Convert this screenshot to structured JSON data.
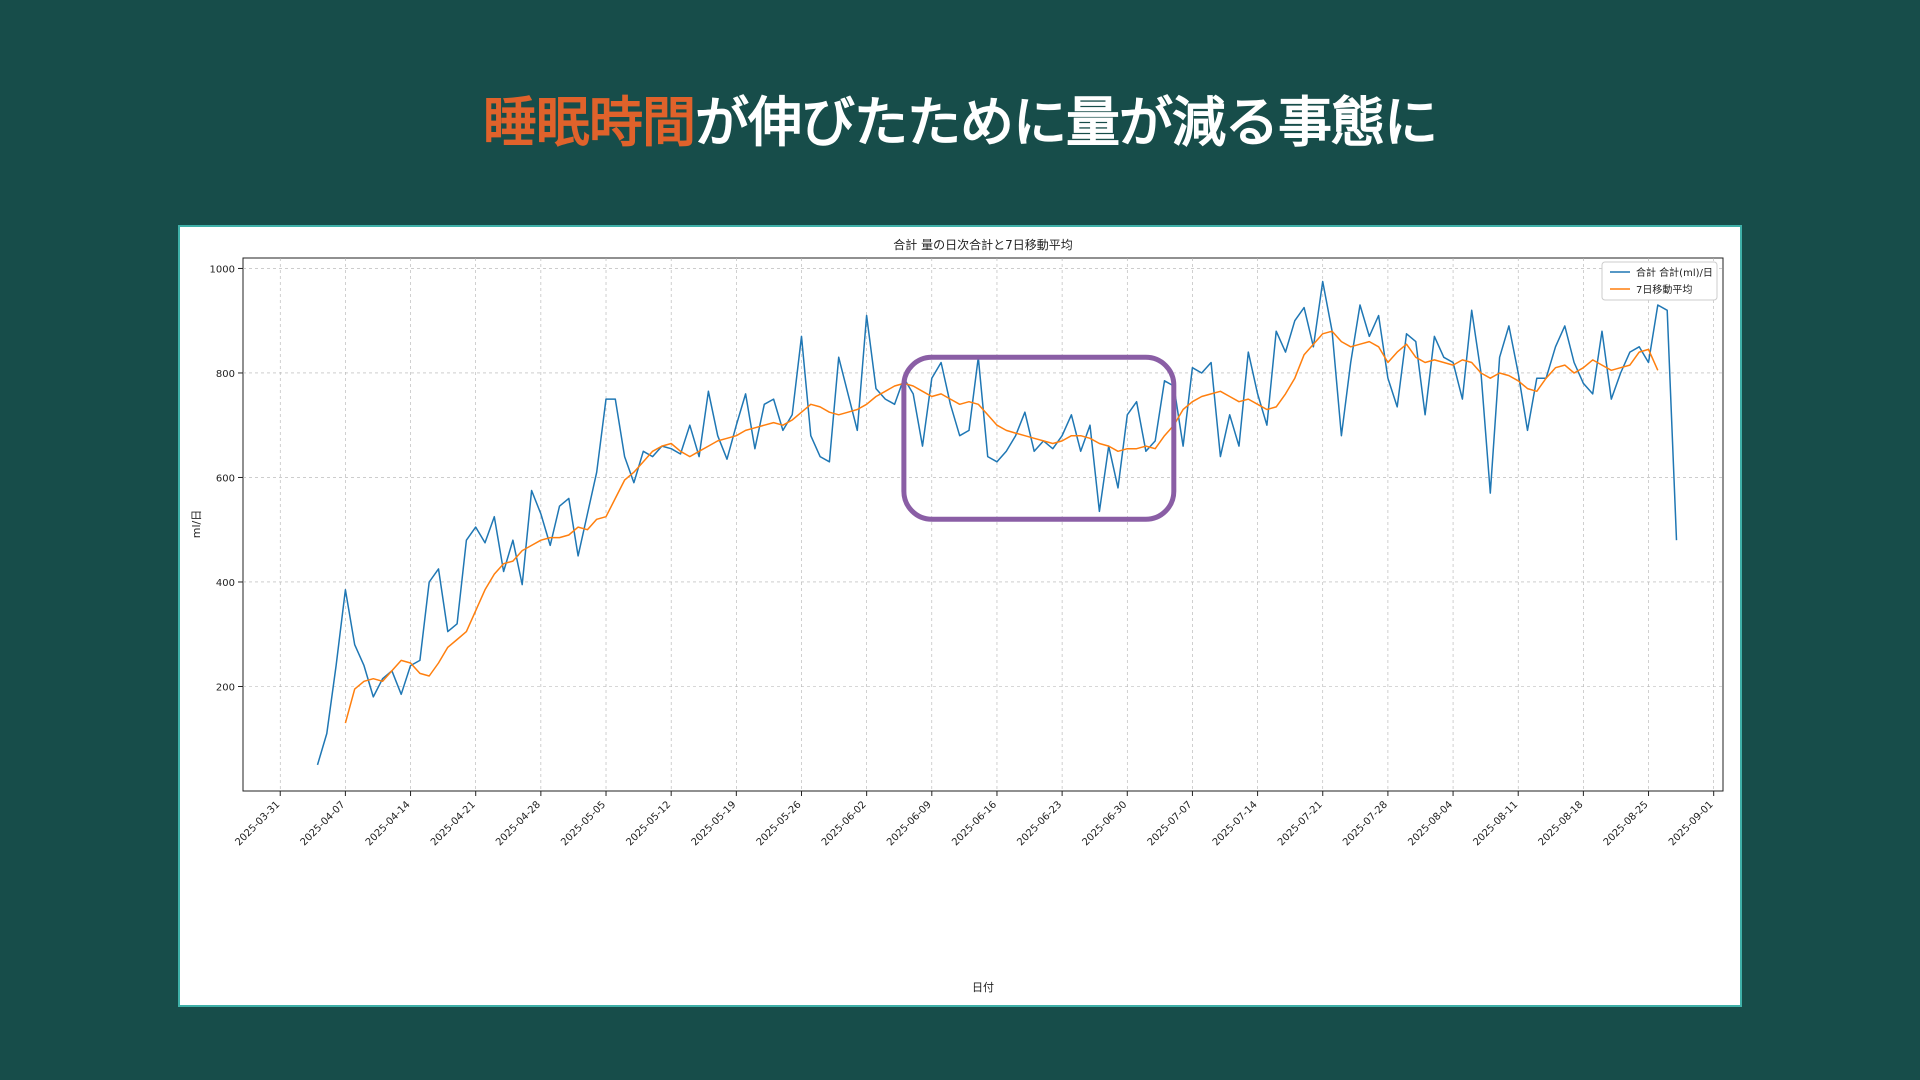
{
  "slide": {
    "title_highlight": "睡眠時間",
    "title_rest": "が伸びたために量が減る事態に"
  },
  "colors": {
    "background": "#174d4a",
    "title_highlight": "#e0622b",
    "card_border": "#3fb0a8",
    "series_daily": "#1f77b4",
    "series_ma": "#ff7f0e",
    "highlight_box": "#8a5ea5"
  },
  "chart_data": {
    "type": "line",
    "title": "合計 量の日次合計と7日移動平均",
    "xlabel": "日付",
    "ylabel": "ml/日",
    "x_start": "2025-04-04",
    "x_ticks": [
      "2025-03-31",
      "2025-04-07",
      "2025-04-14",
      "2025-04-21",
      "2025-04-28",
      "2025-05-05",
      "2025-05-12",
      "2025-05-19",
      "2025-05-26",
      "2025-06-02",
      "2025-06-09",
      "2025-06-16",
      "2025-06-23",
      "2025-06-30",
      "2025-07-07",
      "2025-07-14",
      "2025-07-21",
      "2025-07-28",
      "2025-08-04",
      "2025-08-11",
      "2025-08-18",
      "2025-08-25",
      "2025-09-01"
    ],
    "y_ticks": [
      200,
      400,
      600,
      800,
      1000
    ],
    "ylim": [
      0,
      1020
    ],
    "grid": true,
    "legend_position": "top-right",
    "series": [
      {
        "name": "合計 合計(ml)/日",
        "values": [
          50,
          110,
          240,
          385,
          280,
          240,
          180,
          215,
          230,
          185,
          240,
          250,
          400,
          425,
          305,
          320,
          480,
          505,
          475,
          525,
          420,
          480,
          395,
          575,
          530,
          470,
          545,
          560,
          450,
          530,
          610,
          750,
          750,
          640,
          590,
          650,
          640,
          660,
          655,
          645,
          700,
          640,
          765,
          680,
          635,
          700,
          760,
          655,
          740,
          750,
          690,
          720,
          870,
          680,
          640,
          630,
          830,
          760,
          690,
          910,
          770,
          750,
          740,
          790,
          760,
          660,
          790,
          820,
          740,
          680,
          690,
          830,
          640,
          630,
          650,
          680,
          725,
          650,
          670,
          655,
          680,
          720,
          650,
          700,
          535,
          660,
          580,
          720,
          745,
          650,
          670,
          785,
          775,
          660,
          810,
          800,
          820,
          640,
          720,
          660,
          840,
          760,
          700,
          880,
          840,
          900,
          925,
          850,
          975,
          880,
          680,
          820,
          930,
          870,
          910,
          790,
          735,
          875,
          860,
          720,
          870,
          830,
          820,
          750,
          920,
          800,
          570,
          830,
          890,
          800,
          690,
          790,
          790,
          850,
          890,
          820,
          780,
          760,
          880,
          750,
          800,
          840,
          850,
          820,
          930,
          920,
          480
        ],
        "color": "#1f77b4"
      },
      {
        "name": "7日移動平均",
        "start_index": 3,
        "values": [
          130,
          195,
          210,
          215,
          210,
          230,
          250,
          245,
          225,
          220,
          245,
          275,
          290,
          305,
          345,
          385,
          415,
          435,
          440,
          460,
          470,
          480,
          485,
          485,
          490,
          505,
          500,
          520,
          525,
          560,
          595,
          610,
          630,
          650,
          660,
          665,
          650,
          640,
          650,
          660,
          670,
          675,
          680,
          690,
          695,
          700,
          705,
          700,
          710,
          725,
          740,
          735,
          725,
          720,
          725,
          730,
          740,
          755,
          765,
          775,
          780,
          775,
          765,
          755,
          760,
          750,
          740,
          745,
          740,
          720,
          700,
          690,
          685,
          680,
          675,
          670,
          665,
          670,
          680,
          680,
          675,
          665,
          660,
          650,
          655,
          655,
          660,
          655,
          680,
          700,
          730,
          745,
          755,
          760,
          765,
          755,
          745,
          750,
          740,
          730,
          735,
          760,
          790,
          835,
          855,
          875,
          880,
          860,
          850,
          855,
          860,
          850,
          820,
          840,
          855,
          830,
          820,
          825,
          820,
          815,
          825,
          820,
          800,
          790,
          800,
          795,
          785,
          770,
          765,
          790,
          810,
          815,
          800,
          810,
          825,
          815,
          805,
          810,
          815,
          840,
          845,
          805
        ],
        "color": "#ff7f0e"
      }
    ],
    "annotations": [
      {
        "type": "rounded-rect",
        "color": "#8a5ea5",
        "x_from": "2025-06-06",
        "x_to": "2025-07-05",
        "y_from": 520,
        "y_to": 830
      }
    ]
  }
}
